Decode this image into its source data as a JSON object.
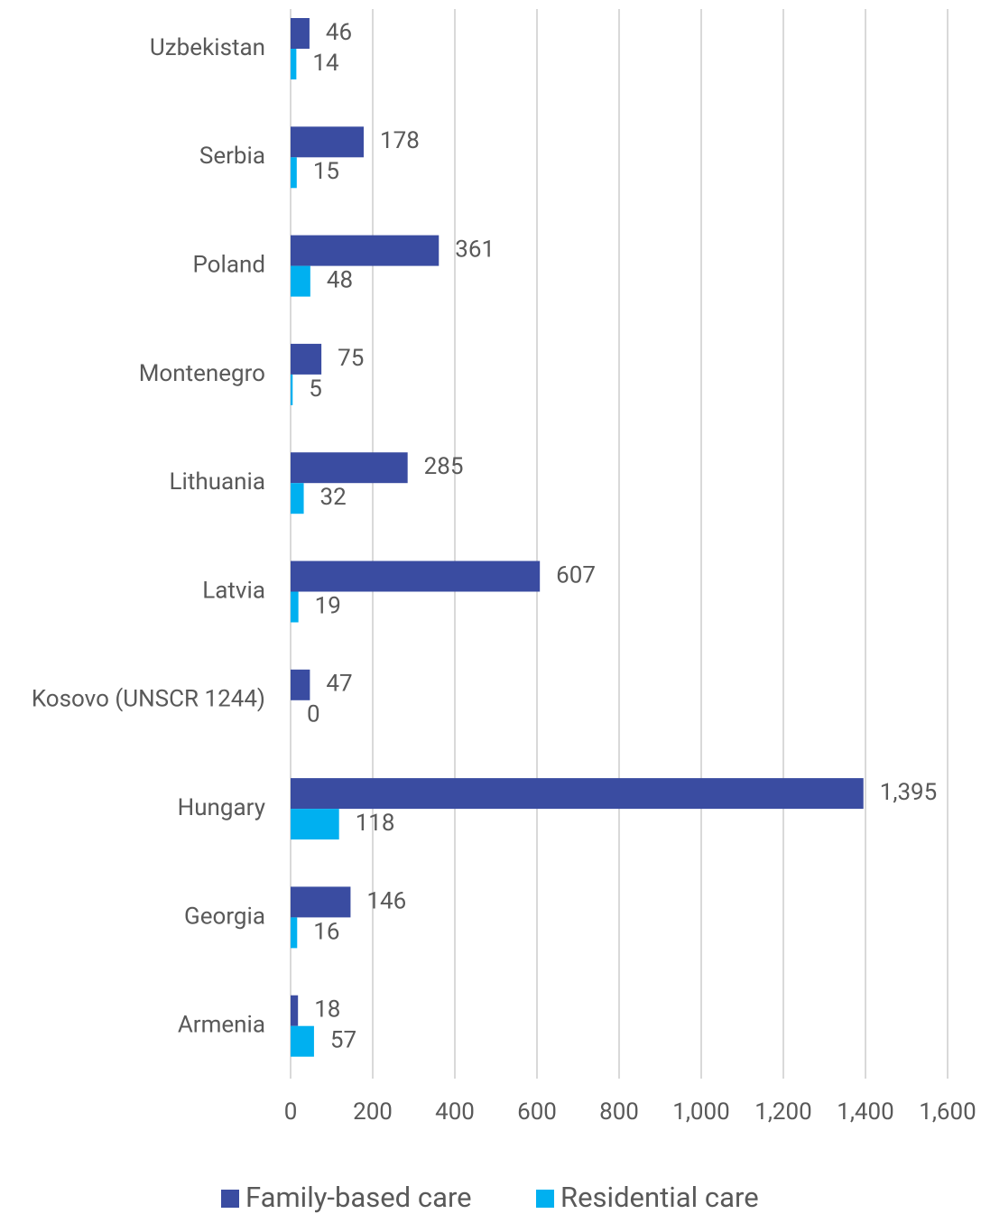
{
  "chart_data": {
    "type": "hbar",
    "categories": [
      "Uzbekistan",
      "Serbia",
      "Poland",
      "Montenegro",
      "Lithuania",
      "Latvia",
      "Kosovo (UNSCR 1244)",
      "Hungary",
      "Georgia",
      "Armenia"
    ],
    "series": [
      {
        "name": "Family-based care",
        "color": "#3a4ca1",
        "values": [
          46,
          178,
          361,
          75,
          285,
          607,
          47,
          1395,
          146,
          18
        ],
        "value_labels": [
          "46",
          "178",
          "361",
          "75",
          "285",
          "607",
          "47",
          "1,395",
          "146",
          "18"
        ]
      },
      {
        "name": "Residential care",
        "color": "#00b0f0",
        "values": [
          14,
          15,
          48,
          5,
          32,
          19,
          0,
          118,
          16,
          57
        ]
      }
    ],
    "xlim": [
      0,
      1600
    ],
    "xticks": [
      0,
      200,
      400,
      600,
      800,
      {
        "value": 1000,
        "label": "1,000"
      },
      {
        "value": 1200,
        "label": "1,200"
      },
      {
        "value": 1400,
        "label": "1,400"
      },
      {
        "value": 1600,
        "label": "1,600"
      }
    ],
    "grid": true,
    "legend": "bottom"
  }
}
